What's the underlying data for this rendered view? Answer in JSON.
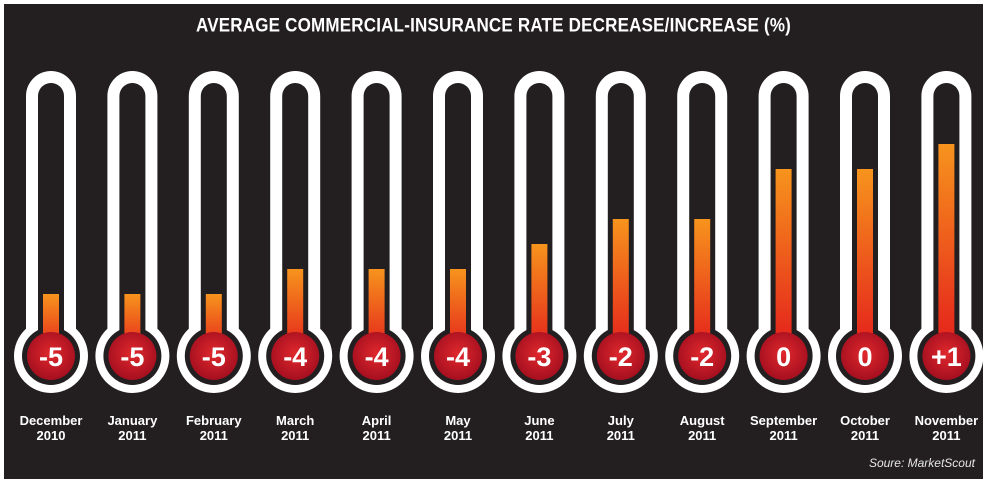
{
  "title": "AVERAGE COMMERCIAL-INSURANCE RATE DECREASE/INCREASE (%)",
  "source": "Soure: MarketScout",
  "colors": {
    "background": "#231f20",
    "tube": "#ffffff",
    "fill_top": "#f7941d",
    "fill_bottom": "#e31b1b",
    "bulb": "#c8102e",
    "bulb_text": "#ffffff"
  },
  "chart_data": {
    "type": "bar",
    "style": "thermometer",
    "title": "AVERAGE COMMERCIAL-INSURANCE RATE DECREASE/INCREASE (%)",
    "categories": [
      "December 2010",
      "January 2011",
      "February 2011",
      "March 2011",
      "April 2011",
      "May 2011",
      "June 2011",
      "July 2011",
      "August 2011",
      "September 2011",
      "October 2011",
      "November 2011"
    ],
    "category_lines": [
      [
        "December",
        "2010"
      ],
      [
        "January",
        "2011"
      ],
      [
        "February",
        "2011"
      ],
      [
        "March",
        "2011"
      ],
      [
        "April",
        "2011"
      ],
      [
        "May",
        "2011"
      ],
      [
        "June",
        "2011"
      ],
      [
        "July",
        "2011"
      ],
      [
        "August",
        "2011"
      ],
      [
        "September",
        "2011"
      ],
      [
        "October",
        "2011"
      ],
      [
        "November",
        "2011"
      ]
    ],
    "values": [
      -5,
      -5,
      -5,
      -4,
      -4,
      -4,
      -3,
      -2,
      -2,
      0,
      0,
      1
    ],
    "value_labels": [
      "-5",
      "-5",
      "-5",
      "-4",
      "-4",
      "-4",
      "-3",
      "-2",
      "-2",
      "0",
      "0",
      "+1"
    ],
    "ylim": [
      -7,
      2
    ]
  }
}
